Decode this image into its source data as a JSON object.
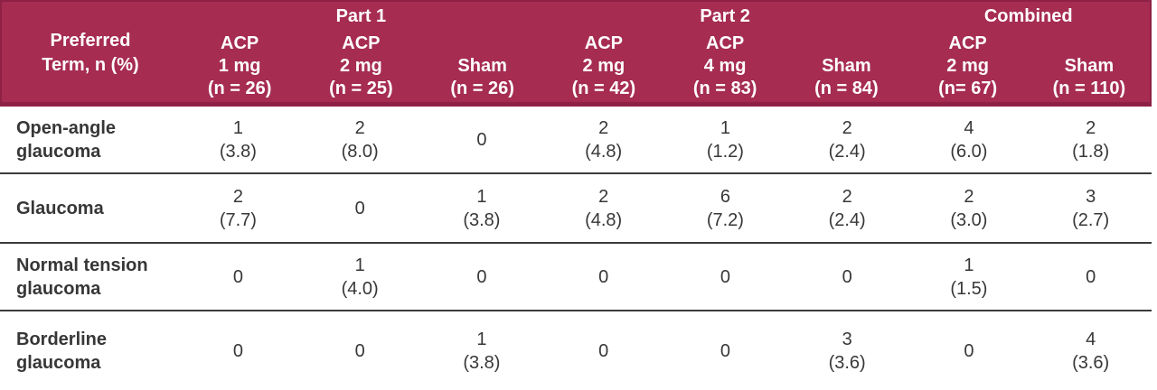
{
  "colors": {
    "header_bg": "#A62C52",
    "header_border": "#8E2145",
    "header_text": "#FFFFFF",
    "body_text": "#373737",
    "separator": "#3B3B3B",
    "background": "#FFFFFF"
  },
  "table": {
    "corner": {
      "lines": [
        "Preferred",
        "Term, n (%)"
      ]
    },
    "groups": [
      {
        "label": "Part 1",
        "span": 3
      },
      {
        "label": "Part 2",
        "span": 3
      },
      {
        "label": "Combined",
        "span": 2
      }
    ],
    "columns": [
      {
        "lines": [
          "ACP",
          "1 mg",
          "(n = 26)"
        ]
      },
      {
        "lines": [
          "ACP",
          "2 mg",
          "(n = 25)"
        ]
      },
      {
        "lines": [
          "Sham",
          "(n = 26)",
          ""
        ]
      },
      {
        "lines": [
          "ACP",
          "2 mg",
          "(n = 42)"
        ]
      },
      {
        "lines": [
          "ACP",
          "4 mg",
          "(n = 83)"
        ]
      },
      {
        "lines": [
          "Sham",
          "(n = 84)",
          ""
        ]
      },
      {
        "lines": [
          "ACP",
          "2 mg",
          "(n= 67)"
        ]
      },
      {
        "lines": [
          "Sham",
          "(n = 110)",
          ""
        ]
      }
    ],
    "rows": [
      {
        "label_lines": [
          "Open-angle",
          "glaucoma"
        ],
        "cells": [
          {
            "n": "1",
            "pct": "(3.8)"
          },
          {
            "n": "2",
            "pct": "(8.0)"
          },
          {
            "n": "0",
            "pct": ""
          },
          {
            "n": "2",
            "pct": "(4.8)"
          },
          {
            "n": "1",
            "pct": "(1.2)"
          },
          {
            "n": "2",
            "pct": "(2.4)"
          },
          {
            "n": "4",
            "pct": "(6.0)"
          },
          {
            "n": "2",
            "pct": "(1.8)"
          }
        ]
      },
      {
        "label_lines": [
          "Glaucoma",
          ""
        ],
        "cells": [
          {
            "n": "2",
            "pct": "(7.7)"
          },
          {
            "n": "0",
            "pct": ""
          },
          {
            "n": "1",
            "pct": "(3.8)"
          },
          {
            "n": "2",
            "pct": "(4.8)"
          },
          {
            "n": "6",
            "pct": "(7.2)"
          },
          {
            "n": "2",
            "pct": "(2.4)"
          },
          {
            "n": "2",
            "pct": "(3.0)"
          },
          {
            "n": "3",
            "pct": "(2.7)"
          }
        ]
      },
      {
        "label_lines": [
          "Normal tension",
          "glaucoma"
        ],
        "cells": [
          {
            "n": "0",
            "pct": ""
          },
          {
            "n": "1",
            "pct": "(4.0)"
          },
          {
            "n": "0",
            "pct": ""
          },
          {
            "n": "0",
            "pct": ""
          },
          {
            "n": "0",
            "pct": ""
          },
          {
            "n": "0",
            "pct": ""
          },
          {
            "n": "1",
            "pct": "(1.5)"
          },
          {
            "n": "0",
            "pct": ""
          }
        ]
      },
      {
        "label_lines": [
          "Borderline",
          "glaucoma"
        ],
        "cells": [
          {
            "n": "0",
            "pct": ""
          },
          {
            "n": "0",
            "pct": ""
          },
          {
            "n": "1",
            "pct": "(3.8)"
          },
          {
            "n": "0",
            "pct": ""
          },
          {
            "n": "0",
            "pct": ""
          },
          {
            "n": "3",
            "pct": "(3.6)"
          },
          {
            "n": "0",
            "pct": ""
          },
          {
            "n": "4",
            "pct": "(3.6)"
          }
        ]
      }
    ]
  }
}
